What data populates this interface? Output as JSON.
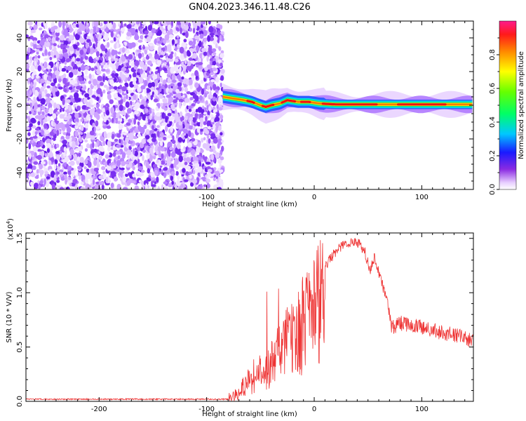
{
  "title": "GN04.2023.346.11.48.C26",
  "chart_data": [
    {
      "type": "heatmap",
      "xlabel": "Height of straight line (km)",
      "ylabel": "Frequency (Hz)",
      "xlim": [
        -268,
        148
      ],
      "ylim": [
        -50,
        50
      ],
      "xticks": [
        -200,
        -100,
        0,
        100
      ],
      "yticks": [
        -40,
        -20,
        0,
        20,
        40
      ],
      "noise_region_x": [
        -268,
        -85
      ],
      "signal_track": [
        {
          "x": -85,
          "f": 5
        },
        {
          "x": -75,
          "f": 4
        },
        {
          "x": -65,
          "f": 3
        },
        {
          "x": -58,
          "f": 2
        },
        {
          "x": -50,
          "f": 0
        },
        {
          "x": -45,
          "f": -1
        },
        {
          "x": -40,
          "f": 0
        },
        {
          "x": -32,
          "f": 1
        },
        {
          "x": -25,
          "f": 3
        },
        {
          "x": -15,
          "f": 2
        },
        {
          "x": -5,
          "f": 2
        },
        {
          "x": 5,
          "f": 1
        },
        {
          "x": 20,
          "f": 0.5
        },
        {
          "x": 60,
          "f": 0.5
        },
        {
          "x": 100,
          "f": 0.5
        },
        {
          "x": 148,
          "f": 0.5
        }
      ],
      "colorbar": {
        "label": "Normalized spectral amplitude",
        "range": [
          0,
          1
        ],
        "ticks": [
          "0.0",
          "0.2",
          "0.4",
          "0.6",
          "0.8"
        ],
        "colormap": "rainbow"
      }
    },
    {
      "type": "line",
      "xlabel": "Height of straight line (km)",
      "ylabel": "SNR (10 * V/V)",
      "scale_note": "(x10",
      "scale_exponent": "4",
      "scale_suffix": ")",
      "xlim": [
        -268,
        148
      ],
      "ylim": [
        0,
        1.55
      ],
      "xticks": [
        -200,
        -100,
        0,
        100
      ],
      "yticks": [
        "0.0",
        "0.5",
        "1.0",
        "1.5"
      ],
      "color": "#ee3333",
      "envelope": [
        {
          "x": -268,
          "y": 0.02
        },
        {
          "x": -80,
          "y": 0.02
        },
        {
          "x": -72,
          "y": 0.06
        },
        {
          "x": -62,
          "y": 0.2
        },
        {
          "x": -55,
          "y": 0.3
        },
        {
          "x": -45,
          "y": 0.32
        },
        {
          "x": -38,
          "y": 0.45
        },
        {
          "x": -30,
          "y": 0.62
        },
        {
          "x": -20,
          "y": 0.75
        },
        {
          "x": -10,
          "y": 0.92
        },
        {
          "x": 0,
          "y": 1.08
        },
        {
          "x": 10,
          "y": 1.25
        },
        {
          "x": 20,
          "y": 1.38
        },
        {
          "x": 30,
          "y": 1.46
        },
        {
          "x": 40,
          "y": 1.47
        },
        {
          "x": 47,
          "y": 1.38
        },
        {
          "x": 52,
          "y": 1.2
        },
        {
          "x": 56,
          "y": 1.33
        },
        {
          "x": 62,
          "y": 1.12
        },
        {
          "x": 68,
          "y": 0.92
        },
        {
          "x": 72,
          "y": 0.68
        },
        {
          "x": 80,
          "y": 0.72
        },
        {
          "x": 100,
          "y": 0.68
        },
        {
          "x": 120,
          "y": 0.63
        },
        {
          "x": 135,
          "y": 0.6
        },
        {
          "x": 148,
          "y": 0.55
        }
      ]
    }
  ]
}
